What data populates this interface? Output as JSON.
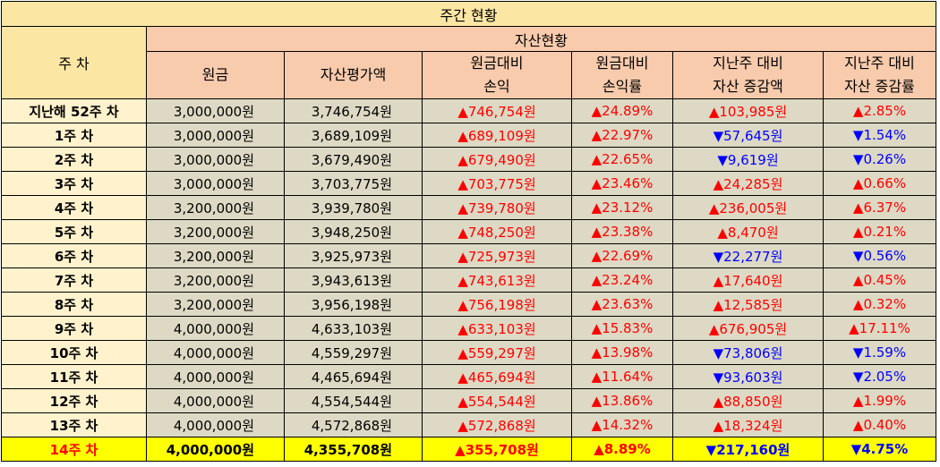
{
  "title": "주간 현황",
  "header": {
    "week": "주 차",
    "asset_group": "자산현황",
    "cols": [
      [
        "원금",
        ""
      ],
      [
        "자산평가액",
        ""
      ],
      [
        "원금대비",
        "손익"
      ],
      [
        "원금대비",
        "손익률"
      ],
      [
        "지난주 대비",
        "자산 증감액"
      ],
      [
        "지난주 대비",
        "자산 증감률"
      ]
    ]
  },
  "colors": {
    "up": "#ff0000",
    "down": "#0000ff",
    "highlight": "#ffff00"
  },
  "rows": [
    {
      "week": "지난해 52주 차",
      "principal": "3,000,000원",
      "value": "3,746,754원",
      "pl": "▲746,754원",
      "plr": "▲24.89%",
      "chg": "▲103,985원",
      "chgr": "▲2.85%",
      "pl_dir": "up",
      "chg_dir": "up"
    },
    {
      "week": "1주 차",
      "principal": "3,000,000원",
      "value": "3,689,109원",
      "pl": "▲689,109원",
      "plr": "▲22.97%",
      "chg": "▼57,645원",
      "chgr": "▼1.54%",
      "pl_dir": "up",
      "chg_dir": "down"
    },
    {
      "week": "2주 차",
      "principal": "3,000,000원",
      "value": "3,679,490원",
      "pl": "▲679,490원",
      "plr": "▲22.65%",
      "chg": "▼9,619원",
      "chgr": "▼0.26%",
      "pl_dir": "up",
      "chg_dir": "down"
    },
    {
      "week": "3주 차",
      "principal": "3,000,000원",
      "value": "3,703,775원",
      "pl": "▲703,775원",
      "plr": "▲23.46%",
      "chg": "▲24,285원",
      "chgr": "▲0.66%",
      "pl_dir": "up",
      "chg_dir": "up"
    },
    {
      "week": "4주 차",
      "principal": "3,200,000원",
      "value": "3,939,780원",
      "pl": "▲739,780원",
      "plr": "▲23.12%",
      "chg": "▲236,005원",
      "chgr": "▲6.37%",
      "pl_dir": "up",
      "chg_dir": "up"
    },
    {
      "week": "5주 차",
      "principal": "3,200,000원",
      "value": "3,948,250원",
      "pl": "▲748,250원",
      "plr": "▲23.38%",
      "chg": "▲8,470원",
      "chgr": "▲0.21%",
      "pl_dir": "up",
      "chg_dir": "up"
    },
    {
      "week": "6주 차",
      "principal": "3,200,000원",
      "value": "3,925,973원",
      "pl": "▲725,973원",
      "plr": "▲22.69%",
      "chg": "▼22,277원",
      "chgr": "▼0.56%",
      "pl_dir": "up",
      "chg_dir": "down"
    },
    {
      "week": "7주 차",
      "principal": "3,200,000원",
      "value": "3,943,613원",
      "pl": "▲743,613원",
      "plr": "▲23.24%",
      "chg": "▲17,640원",
      "chgr": "▲0.45%",
      "pl_dir": "up",
      "chg_dir": "up"
    },
    {
      "week": "8주 차",
      "principal": "3,200,000원",
      "value": "3,956,198원",
      "pl": "▲756,198원",
      "plr": "▲23.63%",
      "chg": "▲12,585원",
      "chgr": "▲0.32%",
      "pl_dir": "up",
      "chg_dir": "up"
    },
    {
      "week": "9주 차",
      "principal": "4,000,000원",
      "value": "4,633,103원",
      "pl": "▲633,103원",
      "plr": "▲15.83%",
      "chg": "▲676,905원",
      "chgr": "▲17.11%",
      "pl_dir": "up",
      "chg_dir": "up"
    },
    {
      "week": "10주 차",
      "principal": "4,000,000원",
      "value": "4,559,297원",
      "pl": "▲559,297원",
      "plr": "▲13.98%",
      "chg": "▼73,806원",
      "chgr": "▼1.59%",
      "pl_dir": "up",
      "chg_dir": "down"
    },
    {
      "week": "11주 차",
      "principal": "4,000,000원",
      "value": "4,465,694원",
      "pl": "▲465,694원",
      "plr": "▲11.64%",
      "chg": "▼93,603원",
      "chgr": "▼2.05%",
      "pl_dir": "up",
      "chg_dir": "down"
    },
    {
      "week": "12주 차",
      "principal": "4,000,000원",
      "value": "4,554,544원",
      "pl": "▲554,544원",
      "plr": "▲13.86%",
      "chg": "▲88,850원",
      "chgr": "▲1.99%",
      "pl_dir": "up",
      "chg_dir": "up"
    },
    {
      "week": "13주 차",
      "principal": "4,000,000원",
      "value": "4,572,868원",
      "pl": "▲572,868원",
      "plr": "▲14.32%",
      "chg": "▲18,324원",
      "chgr": "▲0.40%",
      "pl_dir": "up",
      "chg_dir": "up"
    },
    {
      "week": "14주 차",
      "principal": "4,000,000원",
      "value": "4,355,708원",
      "pl": "▲355,708원",
      "plr": "▲8.89%",
      "chg": "▼217,160원",
      "chgr": "▼4.75%",
      "pl_dir": "up",
      "chg_dir": "down"
    }
  ]
}
